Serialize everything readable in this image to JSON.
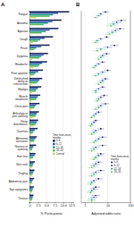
{
  "chart_data": [
    {
      "type": "bar",
      "title": "A",
      "orientation": "horizontal",
      "grid": true,
      "legend": "lower right",
      "legend_title": "Time from onset, months",
      "x_label": "% Participants",
      "categories": [
        "Fatigue",
        "Anosmia",
        "Ageusia",
        "Cough",
        "Fever",
        "Dyspnea",
        "Headache",
        "Poor appetite",
        "Diminished ability to concentrate",
        "Myalgia",
        "Muscle weakness",
        "Chest pain",
        "Arthralgia or joint swelling",
        "Sleep disturbance",
        "Diarrhea",
        "Abnormal sensation",
        "Nausea or vomiting",
        "Hair loss",
        "Skin rash",
        "Tingling",
        "Abdominal pain",
        "Eye symptoms",
        "Tinnitus"
      ],
      "series": [
        {
          "name": "0–6",
          "color": "#1d2b5e",
          "values": [
            11.8,
            9.5,
            8.6,
            7.0,
            6.0,
            5.5,
            5.2,
            4.0,
            3.8,
            3.5,
            3.2,
            3.0,
            2.8,
            2.6,
            2.4,
            2.2,
            2.0,
            1.8,
            1.6,
            1.5,
            1.4,
            1.3,
            1.2
          ]
        },
        {
          "name": "6–12",
          "color": "#3b5ba9",
          "values": [
            8.5,
            6.8,
            6.0,
            4.5,
            3.5,
            4.2,
            3.8,
            2.6,
            3.0,
            2.5,
            2.5,
            2.0,
            2.2,
            2.2,
            1.6,
            1.8,
            1.2,
            1.6,
            1.2,
            1.2,
            1.0,
            1.0,
            1.0
          ]
        },
        {
          "name": "12–18",
          "color": "#2a9d8f",
          "values": [
            7.0,
            5.5,
            4.8,
            3.2,
            2.0,
            3.5,
            3.0,
            1.8,
            2.6,
            2.0,
            2.2,
            1.6,
            2.0,
            2.0,
            1.2,
            1.5,
            0.9,
            1.2,
            1.0,
            1.0,
            0.8,
            0.9,
            0.9
          ]
        },
        {
          "name": "18–24",
          "color": "#5dbb63",
          "values": [
            6.0,
            4.2,
            3.6,
            2.5,
            1.4,
            3.0,
            2.6,
            1.4,
            2.2,
            1.8,
            2.0,
            1.4,
            1.8,
            1.8,
            1.0,
            1.3,
            0.8,
            1.0,
            0.9,
            0.9,
            0.7,
            0.8,
            0.8
          ]
        },
        {
          "name": "Control",
          "color": "#c9dc6e",
          "values": [
            2.0,
            0.3,
            0.3,
            1.0,
            0.4,
            0.8,
            1.2,
            0.5,
            0.6,
            0.7,
            0.6,
            0.5,
            1.0,
            1.2,
            0.6,
            0.5,
            0.4,
            0.4,
            0.5,
            0.4,
            0.5,
            0.5,
            0.4
          ]
        }
      ],
      "xlim": [
        0,
        13
      ],
      "xticks": [
        0,
        2.5,
        {
          "value": 5,
          "label": "5.0"
        },
        7.5,
        {
          "value": 10,
          "label": "10.0"
        },
        12.5
      ]
    },
    {
      "type": "scatter",
      "title": "B",
      "log": "x",
      "grid": true,
      "legend": "lower right",
      "tick_labels": "x",
      "legend_title": "Time from onset, months",
      "x_label": "Adjusted odds ratio",
      "series": [
        {
          "name": "0–6",
          "color": "#1d2b5e",
          "marker": "circle",
          "values": [
            8,
            40,
            35,
            9,
            20,
            9,
            6,
            10,
            8,
            6,
            7,
            8,
            4,
            3,
            5,
            6,
            6,
            5,
            4,
            5,
            4,
            3,
            3
          ],
          "lower": [
            6,
            25,
            22,
            7,
            13,
            6,
            4.5,
            7,
            5.5,
            4.5,
            5,
            5,
            3,
            2.3,
            3.5,
            4,
            4,
            3.3,
            2.7,
            3.3,
            2.7,
            2,
            2
          ],
          "upper": [
            11,
            65,
            55,
            12,
            30,
            13,
            8,
            14,
            11,
            8,
            10,
            12,
            5.5,
            4,
            7,
            9,
            9,
            7.5,
            6,
            7.5,
            6,
            4.5,
            4.5
          ]
        },
        {
          "name": "6–12",
          "color": "#3b5ba9",
          "marker": "circle",
          "values": [
            5,
            25,
            22,
            5,
            10,
            6,
            4,
            6,
            6,
            4,
            5,
            5,
            3,
            2.5,
            3,
            4,
            3,
            4,
            3,
            3,
            2.5,
            2.5,
            2.5
          ],
          "lower": [
            3.8,
            15,
            14,
            3.8,
            6.5,
            4.3,
            3,
            4.3,
            4.3,
            3,
            3.6,
            3.5,
            2.2,
            1.9,
            2.1,
            2.8,
            2,
            2.8,
            2,
            2,
            1.7,
            1.7,
            1.7
          ],
          "upper": [
            6.6,
            42,
            36,
            6.6,
            16,
            8.5,
            5.3,
            8.5,
            8.5,
            5.3,
            7,
            7.2,
            4.1,
            3.3,
            4.3,
            5.8,
            4.5,
            5.8,
            4.5,
            4.5,
            3.7,
            3.7,
            3.7
          ]
        },
        {
          "name": "12–18",
          "color": "#2a9d8f",
          "marker": "circle",
          "values": [
            4,
            18,
            16,
            3.5,
            5,
            5,
            3,
            4,
            5,
            3,
            4,
            4,
            2.5,
            2,
            2.5,
            3,
            2.5,
            3,
            2.5,
            2.5,
            2,
            2,
            2
          ],
          "lower": [
            3,
            11,
            10,
            2.6,
            3.1,
            3.6,
            2.3,
            2.8,
            3.6,
            2.2,
            2.9,
            2.8,
            1.9,
            1.5,
            1.7,
            2.1,
            1.7,
            2.1,
            1.7,
            1.7,
            1.3,
            1.3,
            1.3
          ],
          "upper": [
            5.3,
            30,
            26,
            4.7,
            8.2,
            7,
            3.9,
            5.7,
            7,
            4.1,
            5.5,
            5.7,
            3.3,
            2.6,
            3.7,
            4.3,
            3.7,
            4.3,
            3.7,
            3.7,
            3,
            3,
            3
          ]
        },
        {
          "name": "18–24",
          "color": "#5dbb63",
          "marker": "circle",
          "values": [
            3,
            14,
            12,
            3,
            3.5,
            4,
            2.5,
            3,
            4,
            3,
            3.5,
            3,
            2,
            1.8,
            2,
            2.5,
            2,
            2.5,
            2,
            2,
            1.8,
            1.8,
            2
          ],
          "lower": [
            2.3,
            8.5,
            7.4,
            2.2,
            2.2,
            2.9,
            1.9,
            2.1,
            2.9,
            2.2,
            2.5,
            2.1,
            1.5,
            1.3,
            1.4,
            1.7,
            1.4,
            1.7,
            1.3,
            1.3,
            1.2,
            1.2,
            1.3
          ],
          "upper": [
            3.9,
            23,
            20,
            4.1,
            5.6,
            5.5,
            3.3,
            4.3,
            5.5,
            4.1,
            4.9,
            4.3,
            2.7,
            2.5,
            2.9,
            3.7,
            2.9,
            3.7,
            3.1,
            3.1,
            2.7,
            2.7,
            3.1
          ]
        }
      ],
      "xlim": [
        0.7,
        100
      ],
      "xticks": [
        1,
        10,
        100
      ]
    }
  ]
}
